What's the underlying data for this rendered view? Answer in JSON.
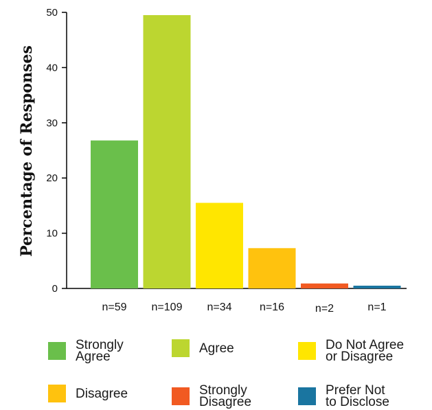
{
  "chart_data": {
    "type": "bar",
    "ylabel": "Percentage of Responses",
    "ylim": [
      0,
      50
    ],
    "yticks": [
      0,
      10,
      20,
      30,
      40,
      50
    ],
    "categories": [
      "Strongly Agree",
      "Agree",
      "Do Not Agree or Disagree",
      "Disagree",
      "Strongly Disagree",
      "Prefer Not to Disclose"
    ],
    "counts": [
      "n=59",
      "n=109",
      "n=34",
      "n=16",
      "n=2",
      "n=1"
    ],
    "values": [
      26.8,
      49.5,
      15.5,
      7.3,
      0.9,
      0.5
    ],
    "colors": [
      "#6abf4b",
      "#bcd630",
      "#ffe600",
      "#ffc20e",
      "#f15a22",
      "#1a75a0"
    ],
    "legend": [
      {
        "label": "Strongly\nAgree",
        "color": "#6abf4b"
      },
      {
        "label": "Agree",
        "color": "#bcd630"
      },
      {
        "label": "Do Not Agree\nor Disagree",
        "color": "#ffe600"
      },
      {
        "label": "Disagree",
        "color": "#ffc20e"
      },
      {
        "label": "Strongly\nDisagree",
        "color": "#f15a22"
      },
      {
        "label": "Prefer Not\nto Disclose",
        "color": "#1a75a0"
      }
    ],
    "legend_position": "bottom",
    "grid": false
  }
}
